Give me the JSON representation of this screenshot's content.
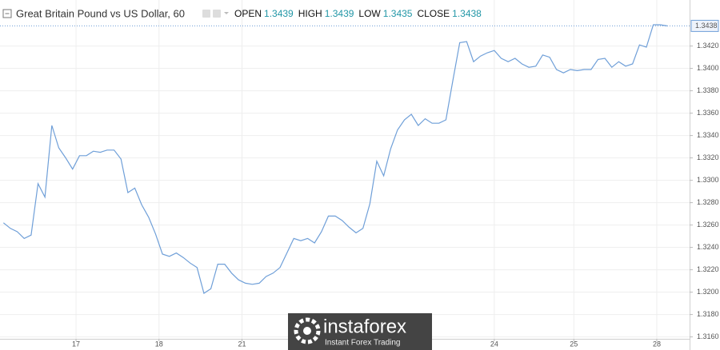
{
  "chart_data": {
    "type": "line",
    "title": "Great Britain Pound vs US Dollar, 60",
    "ohlc": [
      {
        "label": "OPEN",
        "value": 1.3439
      },
      {
        "label": "HIGH",
        "value": 1.3439
      },
      {
        "label": "LOW",
        "value": 1.3435
      },
      {
        "label": "CLOSE",
        "value": 1.3438
      }
    ],
    "color": "#6f9fd8",
    "x": [
      0,
      2,
      4,
      6,
      8,
      10,
      12,
      14,
      16,
      18,
      20,
      22,
      24,
      26,
      28,
      30,
      32,
      34,
      36,
      38,
      40,
      42,
      44,
      46,
      48,
      50,
      52,
      54,
      56,
      58,
      60,
      62,
      64,
      66,
      68,
      70,
      72,
      74,
      76,
      78,
      80,
      82,
      84,
      86,
      88,
      90,
      92,
      94,
      96,
      98,
      100,
      102,
      104,
      106,
      108,
      110,
      112,
      114,
      116,
      118,
      120,
      122,
      124,
      126,
      128,
      130,
      132,
      134,
      136,
      138,
      140,
      142,
      144,
      146,
      148,
      150,
      152,
      154,
      156,
      158,
      160,
      162,
      164,
      166,
      168,
      170,
      172,
      174,
      176,
      178,
      180,
      182,
      184,
      186,
      188,
      190,
      192
    ],
    "values": [
      1.3262,
      1.3257,
      1.3254,
      1.3248,
      1.3251,
      1.3297,
      1.3285,
      1.3349,
      1.3329,
      1.332,
      1.331,
      1.3322,
      1.3322,
      1.3326,
      1.3325,
      1.3327,
      1.3327,
      1.3319,
      1.3289,
      1.3293,
      1.3278,
      1.3267,
      1.3252,
      1.3234,
      1.3232,
      1.3235,
      1.3231,
      1.3226,
      1.3222,
      1.3199,
      1.3203,
      1.3225,
      1.3225,
      1.3217,
      1.3211,
      1.3208,
      1.3207,
      1.3208,
      1.3214,
      1.3217,
      1.3222,
      1.3235,
      1.3248,
      1.3246,
      1.3248,
      1.3244,
      1.3254,
      1.3268,
      1.3268,
      1.3264,
      1.3258,
      1.3253,
      1.3257,
      1.3279,
      1.3317,
      1.3304,
      1.3328,
      1.3345,
      1.3354,
      1.3359,
      1.3349,
      1.3355,
      1.3351,
      1.3351,
      1.3354,
      1.3389,
      1.3423,
      1.3424,
      1.3406,
      1.3411,
      1.3414,
      1.3416,
      1.3409,
      1.3406,
      1.3409,
      1.3404,
      1.3401,
      1.3402,
      1.3412,
      1.341,
      1.3399,
      1.3396,
      1.3399,
      1.3398,
      1.3399,
      1.3399,
      1.3408,
      1.3409,
      1.3401,
      1.3406,
      1.3402,
      1.3404,
      1.3421,
      1.3419,
      1.3439,
      1.3439,
      1.3438
    ],
    "xlim": [
      -1,
      198.5
    ],
    "xticks": [
      {
        "value": 21,
        "label": "17"
      },
      {
        "value": 45,
        "label": "18"
      },
      {
        "value": 69,
        "label": "21"
      },
      {
        "value": 142,
        "label": "24"
      },
      {
        "value": 165,
        "label": "25"
      },
      {
        "value": 189,
        "label": "28"
      }
    ],
    "ylim": [
      1.3154,
      1.3454
    ],
    "yticks": [
      {
        "value": 1.316,
        "label": "1.3160"
      },
      {
        "value": 1.318,
        "label": "1.3180"
      },
      {
        "value": 1.32,
        "label": "1.3200"
      },
      {
        "value": 1.322,
        "label": "1.3220"
      },
      {
        "value": 1.324,
        "label": "1.3240"
      },
      {
        "value": 1.326,
        "label": "1.3260"
      },
      {
        "value": 1.328,
        "label": "1.3280"
      },
      {
        "value": 1.33,
        "label": "1.3300"
      },
      {
        "value": 1.332,
        "label": "1.3320"
      },
      {
        "value": 1.334,
        "label": "1.3340"
      },
      {
        "value": 1.336,
        "label": "1.3360"
      },
      {
        "value": 1.338,
        "label": "1.3380"
      },
      {
        "value": 1.34,
        "label": "1.3400"
      },
      {
        "value": 1.342,
        "label": "1.3420"
      }
    ],
    "grid": true
  },
  "watermark": {
    "brand": "instaforex",
    "tagline": "Instant Forex Trading"
  }
}
